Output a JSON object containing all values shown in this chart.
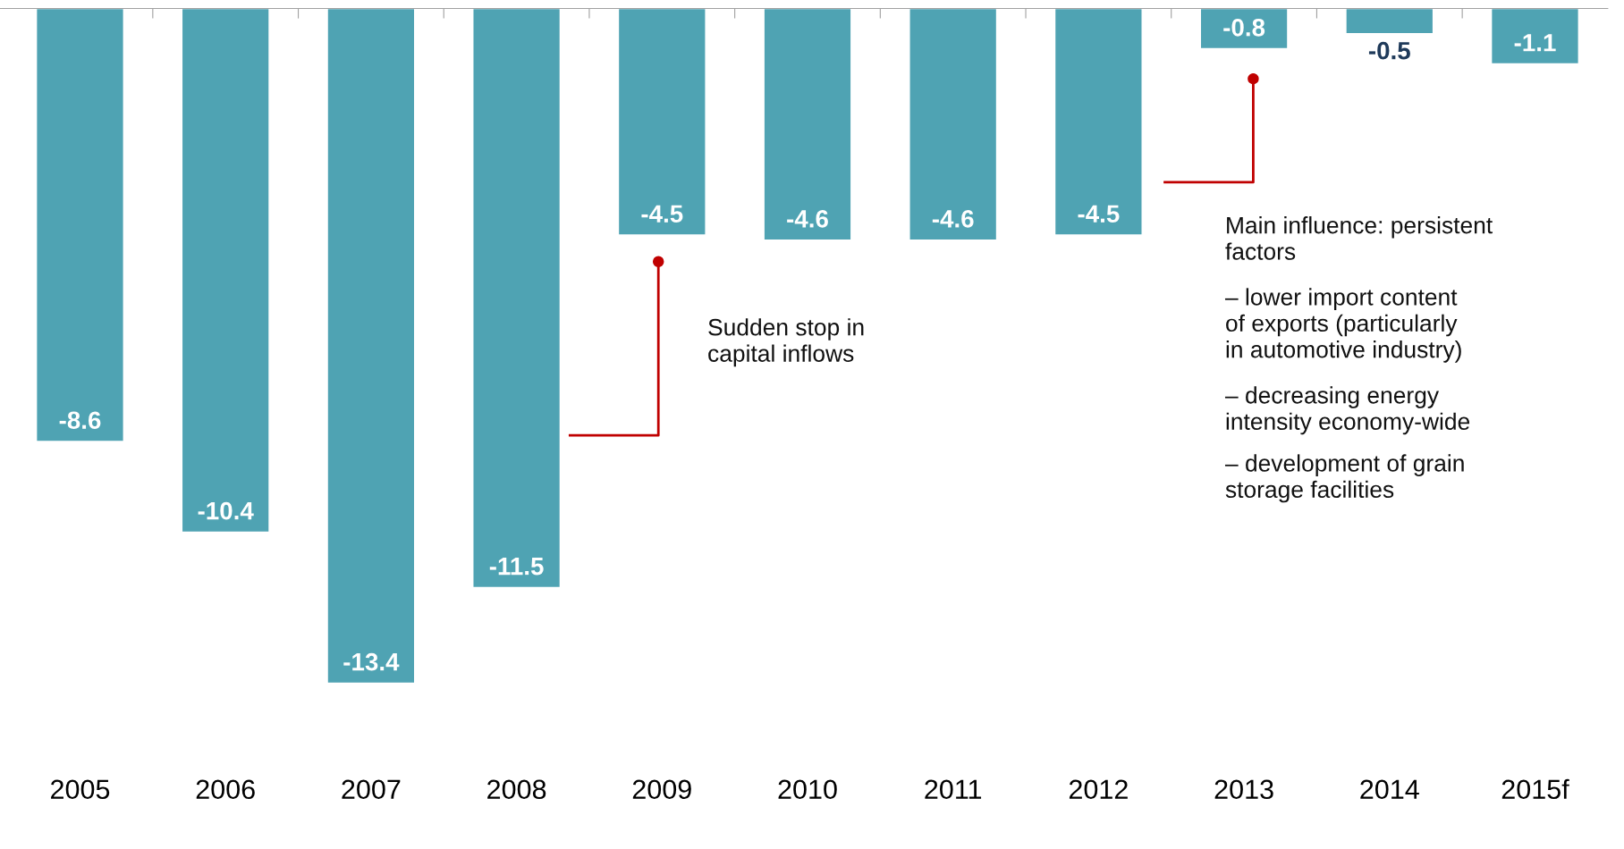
{
  "chart_data": {
    "type": "bar",
    "categories": [
      "2005",
      "2006",
      "2007",
      "2008",
      "2009",
      "2010",
      "2011",
      "2012",
      "2013",
      "2014",
      "2015f"
    ],
    "values": [
      -8.6,
      -10.4,
      -13.4,
      -11.5,
      -4.5,
      -4.6,
      -4.6,
      -4.5,
      -0.8,
      -0.5,
      -1.1
    ],
    "color": "#4fa3b3",
    "data_labels": true,
    "grid": false,
    "legend": false,
    "annotations": [
      "Sudden stop in\ncapital inflows",
      "Main influence: persistent\nfactors",
      "– lower import content\nof exports (particularly\nin automotive industry)",
      "– decreasing energy\nintensity economy-wide",
      "– development of grain\nstorage facilities"
    ]
  }
}
